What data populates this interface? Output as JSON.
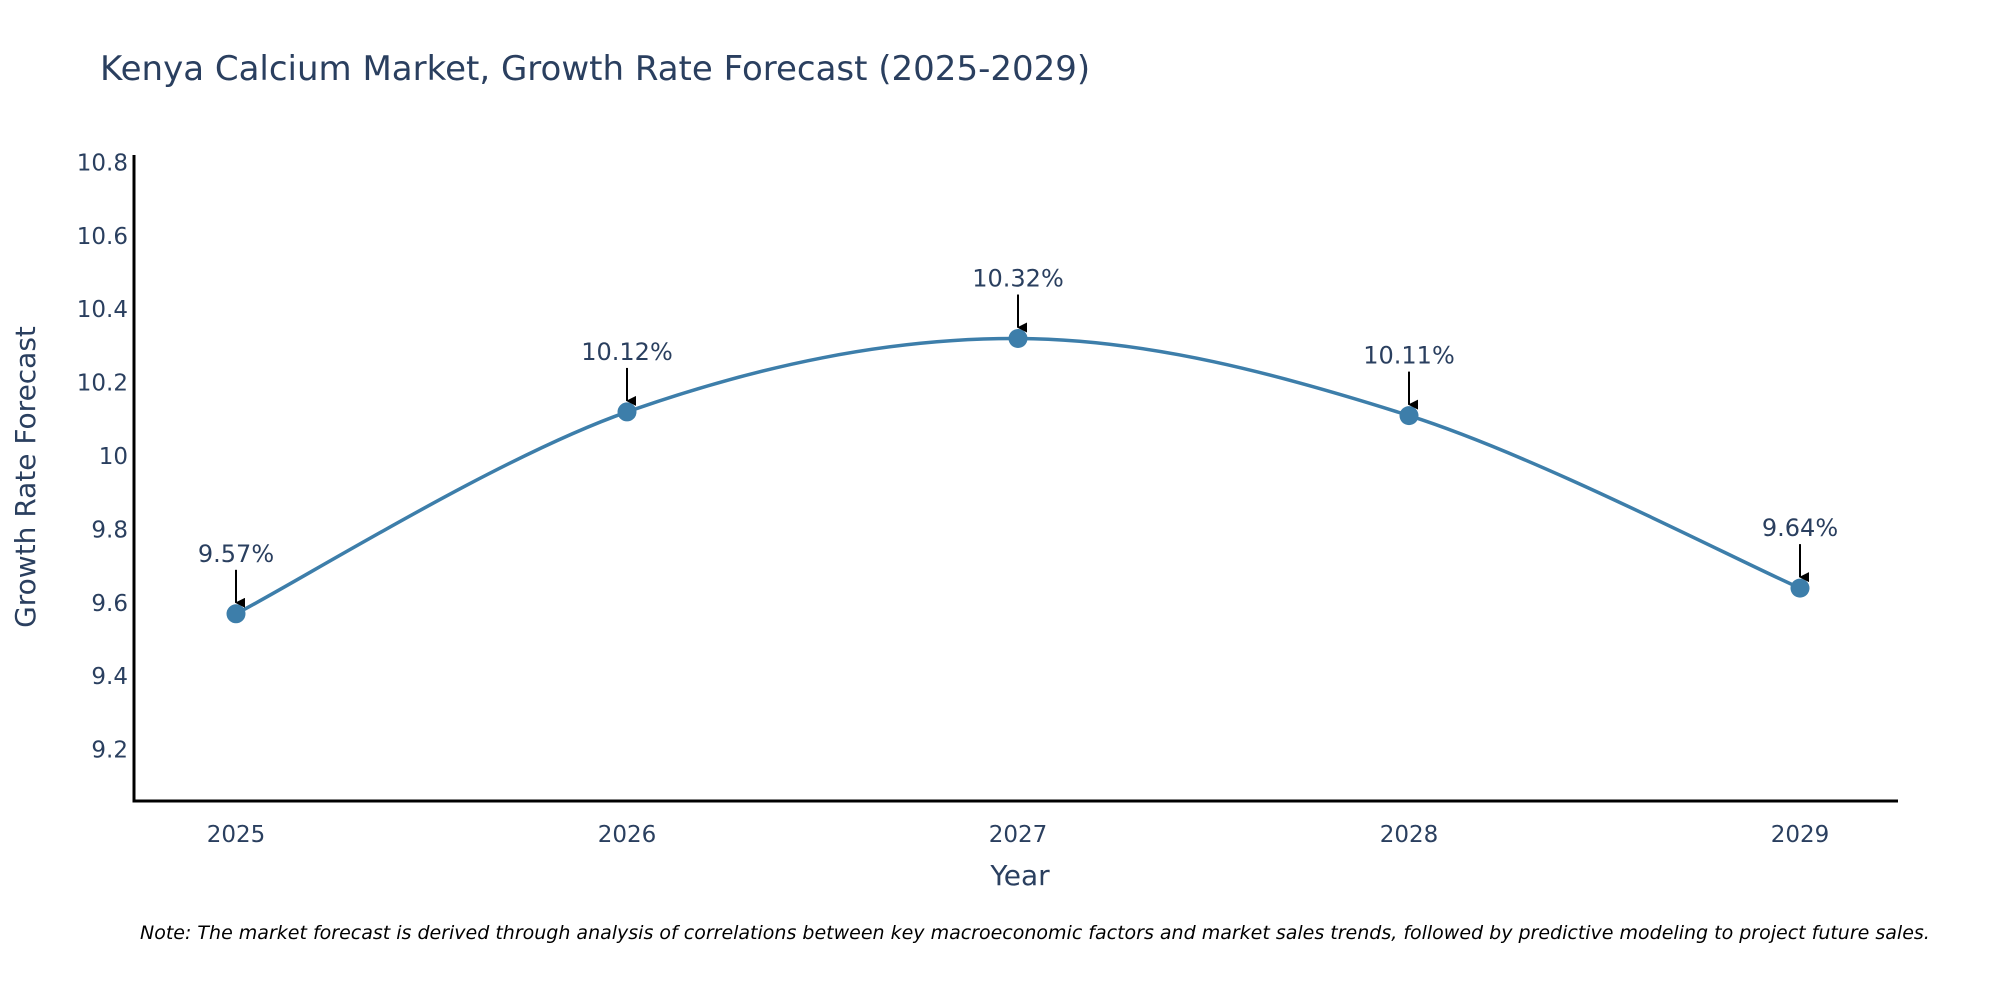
{
  "chart_data": {
    "type": "line",
    "title": "Kenya Calcium Market, Growth Rate Forecast (2025-2029)",
    "xlabel": "Year",
    "ylabel": "Growth Rate Forecast",
    "categories": [
      "2025",
      "2026",
      "2027",
      "2028",
      "2029"
    ],
    "values": [
      9.57,
      10.12,
      10.32,
      10.11,
      9.64
    ],
    "data_labels": [
      "9.57%",
      "10.12%",
      "10.32%",
      "10.11%",
      "9.64%"
    ],
    "yticks": [
      9.2,
      9.4,
      9.6,
      9.8,
      10,
      10.2,
      10.4,
      10.6,
      10.8
    ],
    "ytick_labels": [
      "9.2",
      "9.4",
      "9.6",
      "9.8",
      "10",
      "10.2",
      "10.4",
      "10.6",
      "10.8"
    ],
    "ylim": [
      9.06,
      10.82
    ],
    "grid": false,
    "line_color": "#3d7eaa",
    "axis_color": "#000000",
    "line_shape": "spline"
  },
  "note": "Note: The market forecast is derived through analysis of correlations between key macroeconomic factors and market sales trends, followed by predictive modeling to project future sales."
}
